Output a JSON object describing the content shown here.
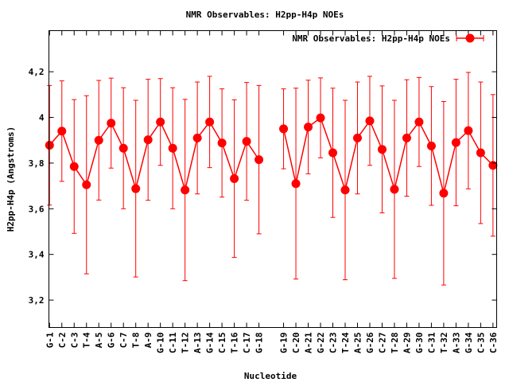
{
  "chart_data": {
    "type": "line",
    "title": "NMR Observables: H2pp-H4p NOEs",
    "xlabel": "Nucleotide",
    "ylabel": "H2pp-H4p (Angstroms)",
    "ylim": [
      3.08,
      4.38
    ],
    "yticks": [
      3.2,
      3.4,
      3.6,
      3.8,
      4,
      4.2
    ],
    "ytick_labels": [
      "3,2",
      "3,4",
      "3,6",
      "3,8",
      "4",
      "4,2"
    ],
    "legend_position": "top-right",
    "grid": false,
    "categories": [
      "G-1",
      "C-2",
      "C-3",
      "T-4",
      "A-5",
      "G-6",
      "C-7",
      "T-8",
      "A-9",
      "G-10",
      "C-11",
      "T-12",
      "A-13",
      "G-14",
      "C-15",
      "T-16",
      "C-17",
      "G-18",
      "G-19",
      "C-20",
      "A-21",
      "G-22",
      "C-23",
      "T-24",
      "A-25",
      "G-26",
      "C-27",
      "T-28",
      "A-29",
      "G-30",
      "C-31",
      "T-32",
      "A-33",
      "G-34",
      "C-35",
      "C-36"
    ],
    "x_positions": [
      1,
      2,
      3,
      4,
      5,
      6,
      7,
      8,
      9,
      10,
      11,
      12,
      13,
      14,
      15,
      16,
      17,
      18,
      20,
      21,
      22,
      23,
      24,
      25,
      26,
      27,
      28,
      29,
      30,
      31,
      32,
      33,
      34,
      35,
      36,
      37
    ],
    "xlim": [
      0.95,
      37.3
    ],
    "series": [
      {
        "name": "NMR Observables: H2pp-H4p NOEs",
        "color": "#ff0000",
        "segments": [
          [
            0,
            17
          ],
          [
            18,
            35
          ]
        ],
        "values": [
          3.878,
          3.94,
          3.785,
          3.705,
          3.9,
          3.975,
          3.865,
          3.688,
          3.902,
          3.98,
          3.865,
          3.682,
          3.91,
          3.98,
          3.888,
          3.732,
          3.895,
          3.815,
          3.95,
          3.71,
          3.958,
          3.998,
          3.845,
          3.682,
          3.91,
          3.985,
          3.86,
          3.685,
          3.91,
          3.98,
          3.875,
          3.668,
          3.89,
          3.942,
          3.845,
          3.79
        ],
        "errors": [
          0.262,
          0.22,
          0.293,
          0.39,
          0.262,
          0.197,
          0.265,
          0.387,
          0.265,
          0.19,
          0.265,
          0.397,
          0.245,
          0.2,
          0.237,
          0.345,
          0.258,
          0.325,
          0.175,
          0.418,
          0.205,
          0.175,
          0.283,
          0.393,
          0.245,
          0.195,
          0.278,
          0.39,
          0.255,
          0.195,
          0.26,
          0.402,
          0.277,
          0.255,
          0.31,
          0.31
        ]
      }
    ]
  }
}
